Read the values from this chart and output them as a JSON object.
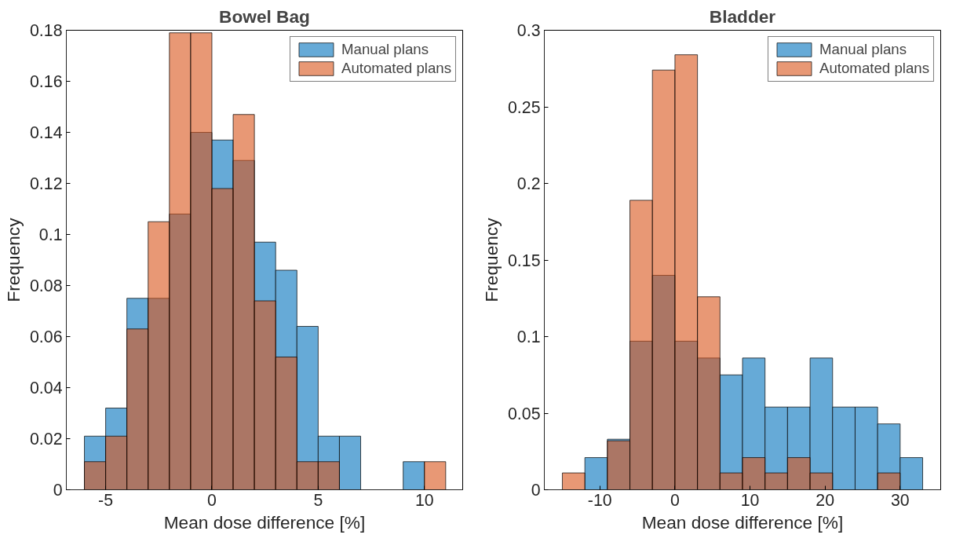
{
  "chart_data": [
    {
      "type": "histogram",
      "title": "Bowel Bag",
      "xlabel": "Mean dose difference [%]",
      "ylabel": "Frequency",
      "bins": [
        -6,
        -5,
        -4,
        -3,
        -2,
        -1,
        0,
        1,
        2,
        3,
        4,
        5,
        6,
        7,
        8,
        9,
        10,
        11
      ],
      "series": [
        {
          "name": "Manual plans",
          "color": "#66aad7",
          "values": [
            0.021,
            0.032,
            0.075,
            0.075,
            0.108,
            0.14,
            0.137,
            0.129,
            0.097,
            0.086,
            0.064,
            0.021,
            0.021,
            null,
            null,
            0.011,
            null
          ]
        },
        {
          "name": "Automated plans",
          "color": "#e89875",
          "values": [
            0.011,
            0.021,
            0.063,
            0.105,
            0.179,
            0.179,
            0.118,
            0.147,
            0.074,
            0.052,
            0.011,
            0.011,
            null,
            null,
            null,
            null,
            0.011
          ]
        }
      ],
      "xlim": [
        -6.85,
        11.8
      ],
      "xticks": [
        -5,
        0,
        5,
        10
      ],
      "ylim": [
        0,
        0.18
      ],
      "yticks": [
        0,
        0.02,
        0.04,
        0.06,
        0.08,
        0.1,
        0.12,
        0.14,
        0.16,
        0.18
      ],
      "grid": false,
      "legend": "top right"
    },
    {
      "type": "histogram",
      "title": "Bladder",
      "xlabel": "Mean dose difference [%]",
      "ylabel": "Frequency",
      "bins": [
        -15,
        -12,
        -9,
        -6,
        -3,
        0,
        3,
        6,
        9,
        12,
        15,
        18,
        21,
        24,
        27,
        30,
        33
      ],
      "series": [
        {
          "name": "Manual plans",
          "color": "#66aad7",
          "values": [
            null,
            0.021,
            0.033,
            0.097,
            0.14,
            0.097,
            0.086,
            0.075,
            0.086,
            0.054,
            0.054,
            0.086,
            0.054,
            0.054,
            0.043,
            0.021
          ]
        },
        {
          "name": "Automated plans",
          "color": "#e89875",
          "values": [
            0.011,
            null,
            0.032,
            0.189,
            0.274,
            0.284,
            0.126,
            0.011,
            0.021,
            0.011,
            0.021,
            0.011,
            null,
            null,
            0.011,
            null
          ]
        }
      ],
      "xlim": [
        -17.4,
        35.4
      ],
      "xticks": [
        -10,
        0,
        10,
        20,
        30
      ],
      "ylim": [
        0,
        0.3
      ],
      "yticks": [
        0,
        0.05,
        0.1,
        0.15,
        0.2,
        0.25,
        0.3
      ],
      "grid": false,
      "legend": "top right"
    }
  ]
}
